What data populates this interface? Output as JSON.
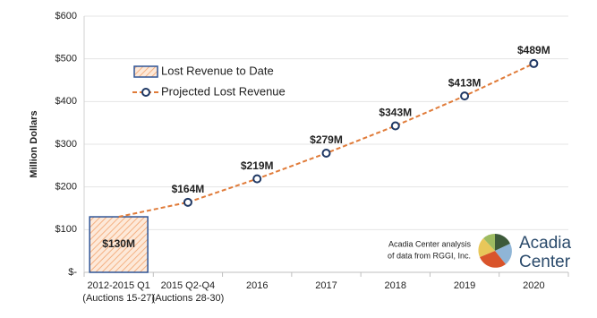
{
  "chart_data": {
    "type": "bar-line",
    "y_label": "Million Dollars",
    "categories": [
      [
        "2012-2015 Q1",
        "(Auctions 15-27)"
      ],
      [
        "2015 Q2-Q4",
        "(Auctions 28-30)"
      ],
      [
        "2016"
      ],
      [
        "2017"
      ],
      [
        "2018"
      ],
      [
        "2019"
      ],
      [
        "2020"
      ]
    ],
    "series": [
      {
        "name": "Lost Revenue to Date",
        "type": "bar",
        "color": "#f4b183",
        "edge": "#2e5496",
        "values": [
          130,
          null,
          null,
          null,
          null,
          null,
          null
        ],
        "value_labels": [
          "$130M",
          null,
          null,
          null,
          null,
          null,
          null
        ]
      },
      {
        "name": "Projected Lost Revenue",
        "type": "line",
        "color": "#e07b39",
        "marker": "#1f3864",
        "values": [
          null,
          164,
          219,
          279,
          343,
          413,
          489
        ],
        "value_labels": [
          null,
          "$164M",
          "$219M",
          "$279M",
          "$343M",
          "$413M",
          "$489M"
        ]
      }
    ],
    "ylim": [
      0,
      600
    ],
    "yticks": [
      {
        "value": 0,
        "label": "$-"
      },
      {
        "value": 100,
        "label": "$100"
      },
      {
        "value": 200,
        "label": "$200"
      },
      {
        "value": 300,
        "label": "$300"
      },
      {
        "value": 400,
        "label": "$400"
      },
      {
        "value": 500,
        "label": "$500"
      },
      {
        "value": 600,
        "label": "$600"
      }
    ],
    "grid": true,
    "legend": "upper-left",
    "annotation": [
      "Acadia Center analysis",
      "of data from RGGI, Inc."
    ],
    "logo": [
      "Acadia",
      "Center"
    ]
  }
}
